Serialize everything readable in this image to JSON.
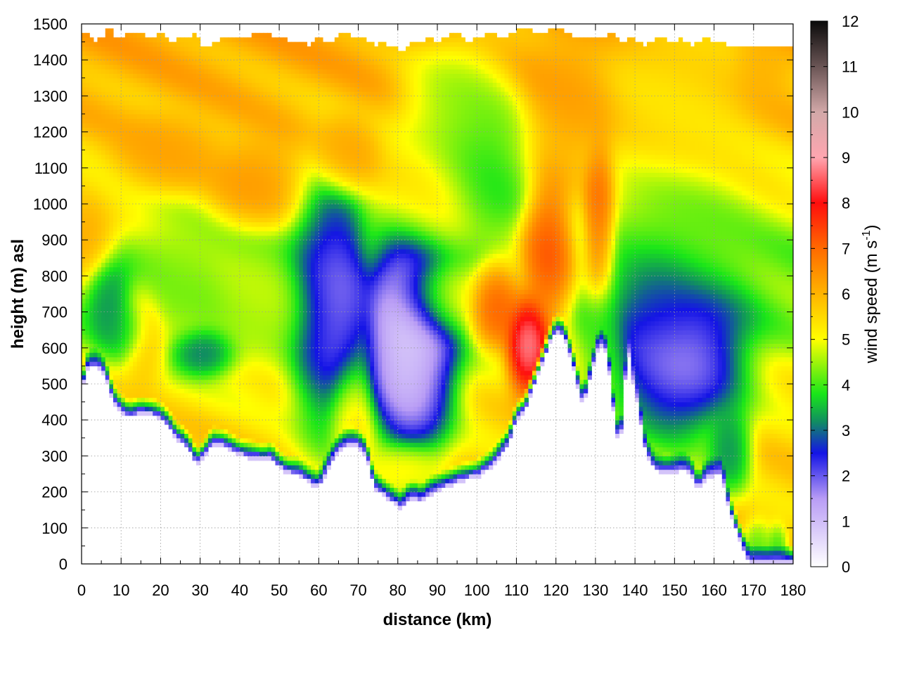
{
  "chart_data": {
    "type": "heatmap",
    "xlabel": "distance (km)",
    "ylabel": "height (m) asl",
    "xlim": [
      0,
      180
    ],
    "ylim": [
      0,
      1500
    ],
    "x_ticks": [
      "0",
      "10",
      "20",
      "30",
      "40",
      "50",
      "60",
      "70",
      "80",
      "90",
      "100",
      "110",
      "120",
      "130",
      "140",
      "150",
      "160",
      "170",
      "180"
    ],
    "y_ticks": [
      "0",
      "100",
      "200",
      "300",
      "400",
      "500",
      "600",
      "700",
      "800",
      "900",
      "1000",
      "1100",
      "1200",
      "1300",
      "1400",
      "1500"
    ],
    "grid": true,
    "colorbar": {
      "label_main": "wind speed (m s",
      "label_sup": "-1",
      "label_close": ")",
      "range": [
        0,
        12
      ],
      "ticks": [
        "0",
        "1",
        "2",
        "3",
        "4",
        "5",
        "6",
        "7",
        "8",
        "9",
        "10",
        "11",
        "12"
      ],
      "stops": [
        {
          "v": 0,
          "c": "#ffffff"
        },
        {
          "v": 1.5,
          "c": "#b89cf5"
        },
        {
          "v": 2.5,
          "c": "#1414e6"
        },
        {
          "v": 3.2,
          "c": "#118f60"
        },
        {
          "v": 3.8,
          "c": "#19e619"
        },
        {
          "v": 5,
          "c": "#ffff00"
        },
        {
          "v": 6,
          "c": "#ffb400"
        },
        {
          "v": 7,
          "c": "#ff6a00"
        },
        {
          "v": 8,
          "c": "#ff0d0d"
        },
        {
          "v": 9,
          "c": "#ffa6b0"
        },
        {
          "v": 10,
          "c": "#d2a8a8"
        },
        {
          "v": 11,
          "c": "#6a5555"
        },
        {
          "v": 12,
          "c": "#0a0a0a"
        }
      ]
    },
    "terrain_profile": [
      [
        0,
        470
      ],
      [
        1,
        530
      ],
      [
        2,
        545
      ],
      [
        4,
        545
      ],
      [
        6,
        520
      ],
      [
        8,
        450
      ],
      [
        10,
        420
      ],
      [
        12,
        405
      ],
      [
        15,
        415
      ],
      [
        18,
        410
      ],
      [
        20,
        400
      ],
      [
        22,
        380
      ],
      [
        24,
        345
      ],
      [
        26,
        330
      ],
      [
        28,
        300
      ],
      [
        29,
        270
      ],
      [
        31,
        295
      ],
      [
        33,
        330
      ],
      [
        36,
        325
      ],
      [
        40,
        300
      ],
      [
        44,
        290
      ],
      [
        46,
        285
      ],
      [
        48,
        290
      ],
      [
        50,
        265
      ],
      [
        52,
        250
      ],
      [
        55,
        245
      ],
      [
        58,
        220
      ],
      [
        60,
        210
      ],
      [
        62,
        255
      ],
      [
        64,
        295
      ],
      [
        66,
        320
      ],
      [
        68,
        330
      ],
      [
        70,
        325
      ],
      [
        72,
        300
      ],
      [
        74,
        210
      ],
      [
        76,
        190
      ],
      [
        79,
        165
      ],
      [
        81,
        150
      ],
      [
        82,
        170
      ],
      [
        84,
        180
      ],
      [
        86,
        170
      ],
      [
        88,
        190
      ],
      [
        92,
        210
      ],
      [
        96,
        230
      ],
      [
        100,
        240
      ],
      [
        104,
        270
      ],
      [
        108,
        330
      ],
      [
        110,
        400
      ],
      [
        112,
        420
      ],
      [
        115,
        510
      ],
      [
        118,
        600
      ],
      [
        120,
        645
      ],
      [
        122,
        630
      ],
      [
        124,
        560
      ],
      [
        126,
        470
      ],
      [
        127,
        440
      ],
      [
        129,
        530
      ],
      [
        131,
        610
      ],
      [
        133,
        580
      ],
      [
        135,
        380
      ],
      [
        136,
        330
      ],
      [
        137,
        400
      ],
      [
        138,
        620
      ],
      [
        139,
        530
      ],
      [
        141,
        430
      ],
      [
        142,
        340
      ],
      [
        143,
        300
      ],
      [
        145,
        260
      ],
      [
        148,
        250
      ],
      [
        152,
        260
      ],
      [
        154,
        250
      ],
      [
        156,
        205
      ],
      [
        158,
        240
      ],
      [
        160,
        245
      ],
      [
        162,
        245
      ],
      [
        164,
        140
      ],
      [
        166,
        80
      ],
      [
        168,
        20
      ],
      [
        169,
        0
      ],
      [
        180,
        0
      ]
    ],
    "top_profile": [
      [
        0,
        1450
      ],
      [
        1,
        1490
      ],
      [
        3,
        1445
      ],
      [
        5,
        1460
      ],
      [
        7,
        1490
      ],
      [
        9,
        1455
      ],
      [
        11,
        1470
      ],
      [
        14,
        1480
      ],
      [
        17,
        1460
      ],
      [
        20,
        1475
      ],
      [
        23,
        1450
      ],
      [
        26,
        1465
      ],
      [
        29,
        1470
      ],
      [
        31,
        1430
      ],
      [
        34,
        1450
      ],
      [
        37,
        1470
      ],
      [
        40,
        1455
      ],
      [
        43,
        1470
      ],
      [
        46,
        1480
      ],
      [
        49,
        1460
      ],
      [
        51,
        1460
      ],
      [
        53,
        1450
      ],
      [
        56,
        1445
      ],
      [
        58,
        1440
      ],
      [
        60,
        1470
      ],
      [
        62,
        1440
      ],
      [
        64,
        1460
      ],
      [
        66,
        1480
      ],
      [
        68,
        1470
      ],
      [
        70,
        1455
      ],
      [
        72,
        1460
      ],
      [
        74,
        1440
      ],
      [
        76,
        1450
      ],
      [
        78,
        1440
      ],
      [
        80,
        1430
      ],
      [
        82,
        1430
      ],
      [
        84,
        1450
      ],
      [
        86,
        1450
      ],
      [
        88,
        1470
      ],
      [
        90,
        1450
      ],
      [
        92,
        1460
      ],
      [
        94,
        1480
      ],
      [
        96,
        1470
      ],
      [
        98,
        1450
      ],
      [
        100,
        1460
      ],
      [
        102,
        1470
      ],
      [
        104,
        1480
      ],
      [
        106,
        1455
      ],
      [
        108,
        1470
      ],
      [
        110,
        1480
      ],
      [
        112,
        1490
      ],
      [
        114,
        1480
      ],
      [
        116,
        1465
      ],
      [
        118,
        1480
      ],
      [
        120,
        1490
      ],
      [
        122,
        1480
      ],
      [
        124,
        1470
      ],
      [
        126,
        1460
      ],
      [
        128,
        1455
      ],
      [
        130,
        1470
      ],
      [
        132,
        1460
      ],
      [
        134,
        1480
      ],
      [
        136,
        1450
      ],
      [
        138,
        1455
      ],
      [
        140,
        1460
      ],
      [
        142,
        1440
      ],
      [
        144,
        1450
      ],
      [
        146,
        1460
      ],
      [
        148,
        1455
      ],
      [
        150,
        1450
      ],
      [
        152,
        1460
      ],
      [
        154,
        1440
      ],
      [
        156,
        1450
      ],
      [
        158,
        1460
      ],
      [
        160,
        1445
      ],
      [
        162,
        1450
      ],
      [
        164,
        1440
      ],
      [
        166,
        1440
      ],
      [
        168,
        1435
      ],
      [
        180,
        1435
      ]
    ],
    "features": [
      {
        "x": 0,
        "y": 900,
        "rx": 6,
        "ry": 80,
        "v": 6.5
      },
      {
        "x": 7,
        "y": 720,
        "rx": 4,
        "ry": 90,
        "v": 3.0
      },
      {
        "x": 12,
        "y": 650,
        "rx": 4,
        "ry": 60,
        "v": 3.3
      },
      {
        "x": 16,
        "y": 620,
        "rx": 4,
        "ry": 100,
        "v": 6.0
      },
      {
        "x": 31,
        "y": 590,
        "rx": 6,
        "ry": 50,
        "v": 2.6
      },
      {
        "x": 44,
        "y": 1060,
        "rx": 9,
        "ry": 90,
        "v": 6.5
      },
      {
        "x": 22,
        "y": 1140,
        "rx": 10,
        "ry": 80,
        "v": 6.3
      },
      {
        "x": 67,
        "y": 1140,
        "rx": 6,
        "ry": 80,
        "v": 6.3
      },
      {
        "x": 62,
        "y": 700,
        "rx": 7,
        "ry": 260,
        "v": 2.0
      },
      {
        "x": 65,
        "y": 720,
        "rx": 5,
        "ry": 190,
        "v": 1.4
      },
      {
        "x": 84,
        "y": 620,
        "rx": 8,
        "ry": 240,
        "v": 0.3
      },
      {
        "x": 81,
        "y": 620,
        "rx": 6,
        "ry": 170,
        "v": 0.5
      },
      {
        "x": 68,
        "y": 420,
        "rx": 4,
        "ry": 120,
        "v": 5.5
      },
      {
        "x": 82,
        "y": 270,
        "rx": 6,
        "ry": 50,
        "v": 5.4
      },
      {
        "x": 90,
        "y": 740,
        "rx": 8,
        "ry": 80,
        "v": 5.5
      },
      {
        "x": 101,
        "y": 1100,
        "rx": 9,
        "ry": 150,
        "v": 3.4
      },
      {
        "x": 105,
        "y": 720,
        "rx": 5,
        "ry": 90,
        "v": 7.6
      },
      {
        "x": 113,
        "y": 610,
        "rx": 4,
        "ry": 100,
        "v": 9.6
      },
      {
        "x": 118,
        "y": 860,
        "rx": 5,
        "ry": 150,
        "v": 7.8
      },
      {
        "x": 131,
        "y": 960,
        "rx": 3,
        "ry": 160,
        "v": 7.5
      },
      {
        "x": 124,
        "y": 1280,
        "rx": 8,
        "ry": 140,
        "v": 6.3
      },
      {
        "x": 132,
        "y": 600,
        "rx": 4,
        "ry": 120,
        "v": 4.0
      },
      {
        "x": 151,
        "y": 580,
        "rx": 12,
        "ry": 170,
        "v": 1.0
      },
      {
        "x": 146,
        "y": 720,
        "rx": 8,
        "ry": 130,
        "v": 2.5
      },
      {
        "x": 164,
        "y": 320,
        "rx": 4,
        "ry": 90,
        "v": 2.8
      },
      {
        "x": 171,
        "y": 40,
        "rx": 3,
        "ry": 60,
        "v": 3.8
      },
      {
        "x": 176,
        "y": 40,
        "rx": 2,
        "ry": 50,
        "v": 3.6
      },
      {
        "x": 150,
        "y": 900,
        "rx": 14,
        "ry": 160,
        "v": 4.1
      },
      {
        "x": 150,
        "y": 1300,
        "rx": 14,
        "ry": 170,
        "v": 5.3
      },
      {
        "x": 172,
        "y": 1380,
        "rx": 5,
        "ry": 80,
        "v": 6.1
      },
      {
        "x": 45,
        "y": 720,
        "rx": 10,
        "ry": 120,
        "v": 4.7
      },
      {
        "x": 25,
        "y": 780,
        "rx": 8,
        "ry": 120,
        "v": 4.4
      },
      {
        "x": 88,
        "y": 1020,
        "rx": 10,
        "ry": 120,
        "v": 5.6
      },
      {
        "x": 95,
        "y": 1250,
        "rx": 10,
        "ry": 150,
        "v": 4.2
      }
    ]
  }
}
